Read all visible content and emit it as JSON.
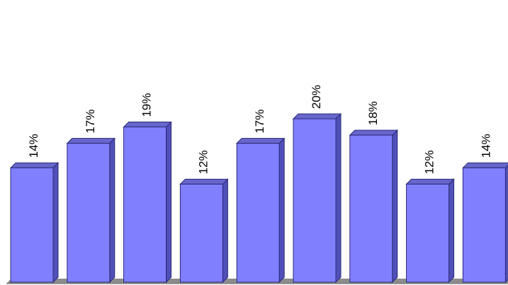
{
  "chart_data": {
    "type": "bar",
    "categories": [
      "",
      "",
      "",
      "",
      "",
      "",
      "",
      "",
      ""
    ],
    "values": [
      14,
      17,
      19,
      12,
      17,
      20,
      18,
      12,
      14
    ],
    "data_labels": [
      "14%",
      "17%",
      "19%",
      "12%",
      "17%",
      "20%",
      "18%",
      "12%",
      "14%"
    ],
    "title": "",
    "xlabel": "",
    "ylabel": "",
    "ylim": [
      0,
      25
    ],
    "style": "3d-bar",
    "grid": false,
    "legend": "none"
  },
  "colors": {
    "bar_front": "#8080FF",
    "bar_side": "#5050B8",
    "bar_top": "#6666CC",
    "bar_edge": "#2A2A78",
    "floor": "#8C8C8C",
    "label": "#000000"
  }
}
